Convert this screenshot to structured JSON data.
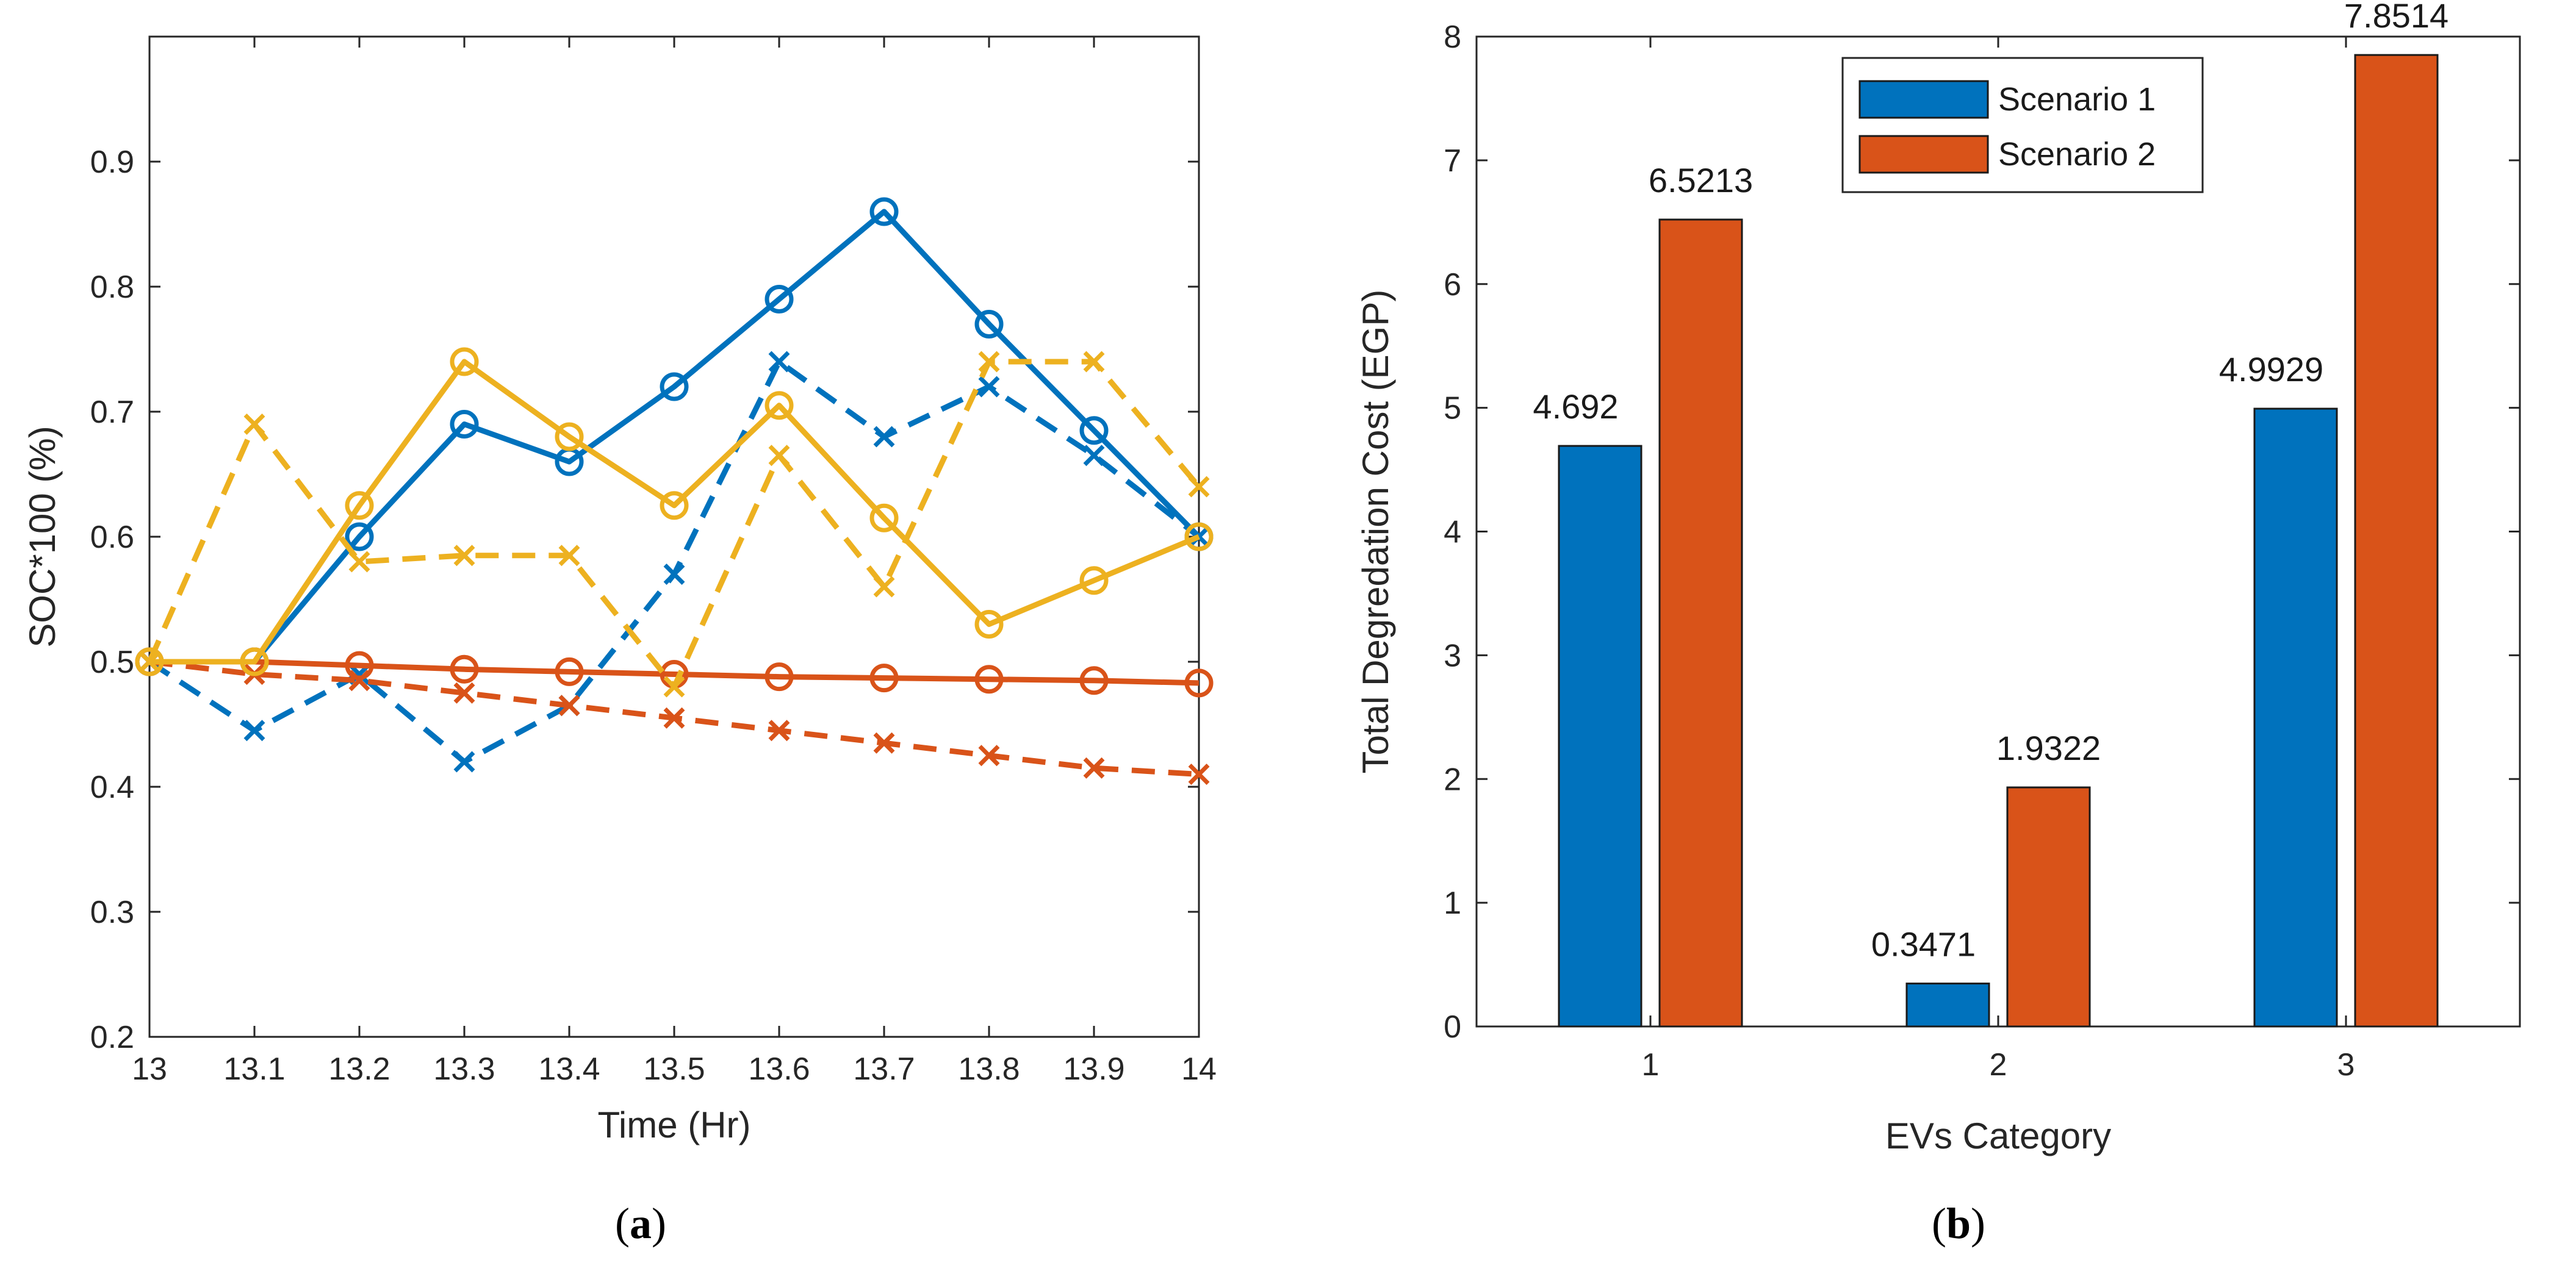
{
  "colors": {
    "blue": "#0072BD",
    "orange": "#D95319",
    "yellow": "#EDB120",
    "axis": "#262626"
  },
  "captions": {
    "a": {
      "open": "(",
      "letter": "a",
      "close": ")"
    },
    "b": {
      "open": "(",
      "letter": "b",
      "close": ")"
    }
  },
  "chart_data": [
    {
      "type": "line",
      "title": "",
      "xlabel": "Time (Hr)",
      "ylabel": "SOC*100 (%)",
      "xlim": [
        13,
        14
      ],
      "ylim": [
        0.2,
        1.0
      ],
      "xticks": [
        13,
        13.1,
        13.2,
        13.3,
        13.4,
        13.5,
        13.6,
        13.7,
        13.8,
        13.9,
        14
      ],
      "xtick_labels": [
        "13",
        "13.1",
        "13.2",
        "13.3",
        "13.4",
        "13.5",
        "13.6",
        "13.7",
        "13.8",
        "13.9",
        "14"
      ],
      "yticks": [
        0.2,
        0.3,
        0.4,
        0.5,
        0.6,
        0.7,
        0.8,
        0.9
      ],
      "ytick_labels": [
        "0.2",
        "0.3",
        "0.4",
        "0.5",
        "0.6",
        "0.7",
        "0.8",
        "0.9"
      ],
      "grid": false,
      "x": [
        13,
        13.1,
        13.2,
        13.3,
        13.4,
        13.5,
        13.6,
        13.7,
        13.8,
        13.9,
        14
      ],
      "series": [
        {
          "name": "blue-solid",
          "color": "blue",
          "dash": "solid",
          "marker": "o",
          "values": [
            0.5,
            0.5,
            0.6,
            0.69,
            0.66,
            0.72,
            0.79,
            0.86,
            0.77,
            0.685,
            0.6
          ]
        },
        {
          "name": "blue-dashed",
          "color": "blue",
          "dash": "dashed",
          "marker": "x",
          "values": [
            0.5,
            0.445,
            0.49,
            0.42,
            0.465,
            0.57,
            0.74,
            0.68,
            0.72,
            0.665,
            0.6
          ]
        },
        {
          "name": "orange-solid",
          "color": "orange",
          "dash": "solid",
          "marker": "o",
          "values": [
            0.5,
            0.5,
            0.497,
            0.494,
            0.492,
            0.49,
            0.488,
            0.487,
            0.486,
            0.485,
            0.483
          ]
        },
        {
          "name": "orange-dashed",
          "color": "orange",
          "dash": "dashed",
          "marker": "x",
          "values": [
            0.5,
            0.49,
            0.485,
            0.475,
            0.465,
            0.455,
            0.445,
            0.435,
            0.425,
            0.415,
            0.41
          ]
        },
        {
          "name": "yellow-solid",
          "color": "yellow",
          "dash": "solid",
          "marker": "o",
          "values": [
            0.5,
            0.5,
            0.625,
            0.74,
            0.68,
            0.625,
            0.705,
            0.615,
            0.53,
            0.565,
            0.6
          ]
        },
        {
          "name": "yellow-dashed",
          "color": "yellow",
          "dash": "dashed",
          "marker": "x",
          "values": [
            0.5,
            0.69,
            0.58,
            0.585,
            0.585,
            0.48,
            0.665,
            0.56,
            0.74,
            0.74,
            0.64
          ]
        }
      ]
    },
    {
      "type": "bar",
      "title": "",
      "xlabel": "EVs Category",
      "ylabel": "Total Degredation Cost (EGP)",
      "categories": [
        "1",
        "2",
        "3"
      ],
      "ylim": [
        0,
        8
      ],
      "yticks": [
        0,
        1,
        2,
        3,
        4,
        5,
        6,
        7,
        8
      ],
      "ytick_labels": [
        "0",
        "1",
        "2",
        "3",
        "4",
        "5",
        "6",
        "7",
        "8"
      ],
      "grid": false,
      "legend": "top-center",
      "series": [
        {
          "name": "Scenario 1",
          "color": "blue",
          "values": [
            4.692,
            0.3471,
            4.9929
          ],
          "labels": [
            "4.692",
            "0.3471",
            "4.9929"
          ]
        },
        {
          "name": "Scenario 2",
          "color": "orange",
          "values": [
            6.5213,
            1.9322,
            7.8514
          ],
          "labels": [
            "6.5213",
            "1.9322",
            "7.8514"
          ]
        }
      ]
    }
  ]
}
